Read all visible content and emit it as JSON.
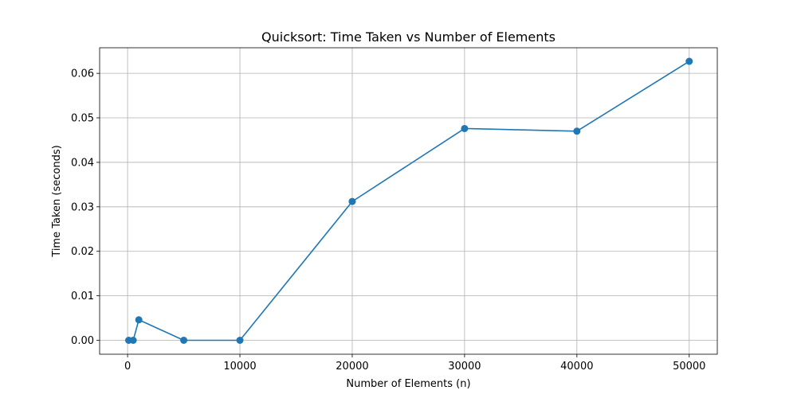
{
  "chart_data": {
    "type": "line",
    "title": "Quicksort: Time Taken vs Number of Elements",
    "xlabel": "Number of Elements (n)",
    "ylabel": "Time Taken (seconds)",
    "xlim": [
      -2490,
      52500
    ],
    "ylim": [
      -0.00313,
      0.06575
    ],
    "xticks": [
      0,
      10000,
      20000,
      30000,
      40000,
      50000
    ],
    "xtick_labels": [
      "0",
      "10000",
      "20000",
      "30000",
      "40000",
      "50000"
    ],
    "yticks": [
      0.0,
      0.01,
      0.02,
      0.03,
      0.04,
      0.05,
      0.06
    ],
    "ytick_labels": [
      "0.00",
      "0.01",
      "0.02",
      "0.03",
      "0.04",
      "0.05",
      "0.06"
    ],
    "grid": true,
    "series": [
      {
        "color": "#1f77b4",
        "marker": "circle",
        "x": [
          100,
          500,
          1000,
          5000,
          10000,
          20000,
          30000,
          40000,
          50000
        ],
        "y": [
          0.0,
          0.0,
          0.0046,
          0.0,
          0.0,
          0.0312,
          0.0476,
          0.047,
          0.0627
        ]
      }
    ]
  }
}
